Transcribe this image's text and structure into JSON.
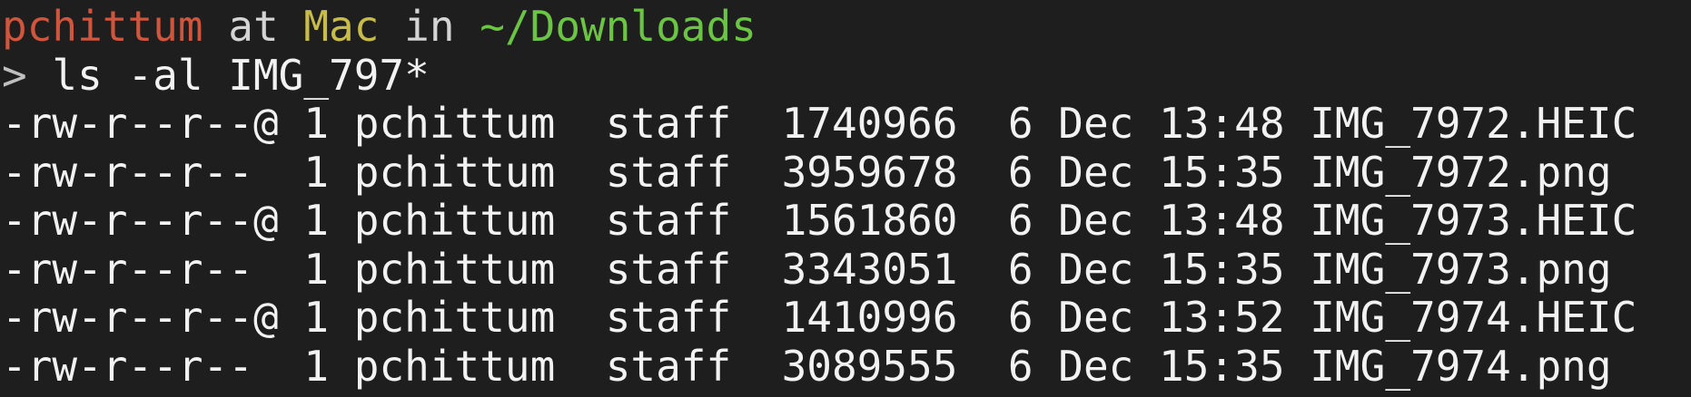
{
  "prompt": {
    "user": "pchittum",
    "at": "at",
    "host": "Mac",
    "in": "in",
    "cwd": "~/Downloads",
    "symbol": ">",
    "command": "ls -al IMG_797*"
  },
  "colors": {
    "background": "#1e1e1e",
    "user": "#cf553d",
    "host": "#c7bb4a",
    "path": "#6bc443",
    "text": "#f2f2f2"
  },
  "listing": [
    {
      "perms": "-rw-r--r--@",
      "links": "1",
      "owner": "pchittum",
      "group": "staff",
      "size": "1740966",
      "day": "6",
      "month": "Dec",
      "time": "13:48",
      "name": "IMG_7972.HEIC"
    },
    {
      "perms": "-rw-r--r-- ",
      "links": "1",
      "owner": "pchittum",
      "group": "staff",
      "size": "3959678",
      "day": "6",
      "month": "Dec",
      "time": "15:35",
      "name": "IMG_7972.png"
    },
    {
      "perms": "-rw-r--r--@",
      "links": "1",
      "owner": "pchittum",
      "group": "staff",
      "size": "1561860",
      "day": "6",
      "month": "Dec",
      "time": "13:48",
      "name": "IMG_7973.HEIC"
    },
    {
      "perms": "-rw-r--r-- ",
      "links": "1",
      "owner": "pchittum",
      "group": "staff",
      "size": "3343051",
      "day": "6",
      "month": "Dec",
      "time": "15:35",
      "name": "IMG_7973.png"
    },
    {
      "perms": "-rw-r--r--@",
      "links": "1",
      "owner": "pchittum",
      "group": "staff",
      "size": "1410996",
      "day": "6",
      "month": "Dec",
      "time": "13:52",
      "name": "IMG_7974.HEIC"
    },
    {
      "perms": "-rw-r--r-- ",
      "links": "1",
      "owner": "pchittum",
      "group": "staff",
      "size": "3089555",
      "day": "6",
      "month": "Dec",
      "time": "15:35",
      "name": "IMG_7974.png"
    }
  ]
}
